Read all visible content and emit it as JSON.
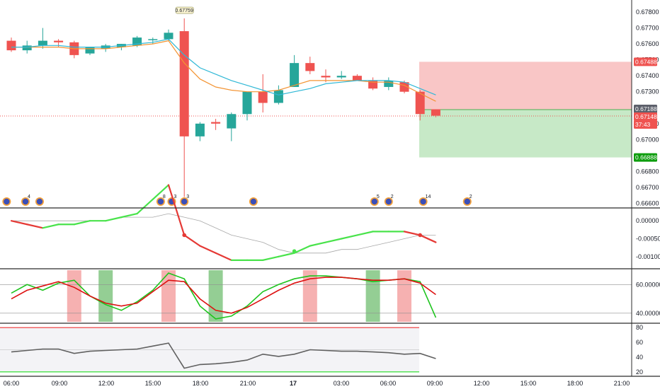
{
  "colors": {
    "up": "#26a69a",
    "down": "#ef5350",
    "ema_fast": "#2fb8d6",
    "ema_slow": "#f39433",
    "osc_up": "#49e34b",
    "osc_down": "#e53935",
    "osc_signal": "#a8a8a8",
    "stoch_k": "#1ec41e",
    "stoch_d": "#dd1111",
    "rsi": "#606060",
    "band_high": "#ee3333",
    "band_low": "#22dd22",
    "loss_zone": "#f9c6c6",
    "profit_zone": "#c7e9c7",
    "tag_price": "#5d606b",
    "tag_down": "#ef5350",
    "tag_stop": "#ef5350",
    "tag_target": "#0d9d0d",
    "buy_zone": "#f4a3a3",
    "sell_zone": "#8ecb8e"
  },
  "chart_data": [
    {
      "type": "candlestick",
      "x_ticks": [
        "06:00",
        "09:00",
        "12:00",
        "15:00",
        "18:00",
        "21:00",
        "17",
        "03:00",
        "06:00",
        "09:00",
        "12:00",
        "15:00",
        "18:00",
        "21:00"
      ],
      "y_ticks": [
        "0.67800",
        "0.67700",
        "0.67600",
        "0.67500",
        "0.67400",
        "0.67300",
        "0.67100",
        "0.67000",
        "0.66800",
        "0.66700",
        "0.66600"
      ],
      "ylim": [
        0.6658,
        0.6784
      ],
      "candles": [
        {
          "o": 0.6762,
          "h": 0.6764,
          "l": 0.6755,
          "c": 0.6756
        },
        {
          "o": 0.6756,
          "h": 0.6762,
          "l": 0.6754,
          "c": 0.6759
        },
        {
          "o": 0.6759,
          "h": 0.677,
          "l": 0.6757,
          "c": 0.6762
        },
        {
          "o": 0.6762,
          "h": 0.6763,
          "l": 0.6758,
          "c": 0.6761
        },
        {
          "o": 0.6761,
          "h": 0.6762,
          "l": 0.6751,
          "c": 0.6753
        },
        {
          "o": 0.6754,
          "h": 0.6758,
          "l": 0.6753,
          "c": 0.6758
        },
        {
          "o": 0.6757,
          "h": 0.676,
          "l": 0.6755,
          "c": 0.6759
        },
        {
          "o": 0.6758,
          "h": 0.676,
          "l": 0.6756,
          "c": 0.676
        },
        {
          "o": 0.6759,
          "h": 0.6765,
          "l": 0.6758,
          "c": 0.6764
        },
        {
          "o": 0.6763,
          "h": 0.6764,
          "l": 0.676,
          "c": 0.6763
        },
        {
          "o": 0.6763,
          "h": 0.6769,
          "l": 0.6762,
          "c": 0.6767
        },
        {
          "o": 0.6768,
          "h": 0.6776,
          "l": 0.6664,
          "c": 0.6702
        },
        {
          "o": 0.6702,
          "h": 0.6711,
          "l": 0.6699,
          "c": 0.671
        },
        {
          "o": 0.6711,
          "h": 0.6713,
          "l": 0.6706,
          "c": 0.671
        },
        {
          "o": 0.6707,
          "h": 0.6717,
          "l": 0.6699,
          "c": 0.6716
        },
        {
          "o": 0.6716,
          "h": 0.673,
          "l": 0.6712,
          "c": 0.673
        },
        {
          "o": 0.673,
          "h": 0.6741,
          "l": 0.6717,
          "c": 0.6723
        },
        {
          "o": 0.6723,
          "h": 0.6734,
          "l": 0.6722,
          "c": 0.6731
        },
        {
          "o": 0.6733,
          "h": 0.6753,
          "l": 0.6733,
          "c": 0.6748
        },
        {
          "o": 0.6748,
          "h": 0.6752,
          "l": 0.6741,
          "c": 0.6743
        },
        {
          "o": 0.674,
          "h": 0.6744,
          "l": 0.6736,
          "c": 0.6739
        },
        {
          "o": 0.6739,
          "h": 0.6743,
          "l": 0.6738,
          "c": 0.674
        },
        {
          "o": 0.674,
          "h": 0.6741,
          "l": 0.6737,
          "c": 0.6737
        },
        {
          "o": 0.6737,
          "h": 0.6739,
          "l": 0.6731,
          "c": 0.6732
        },
        {
          "o": 0.6733,
          "h": 0.6739,
          "l": 0.6731,
          "c": 0.6737
        },
        {
          "o": 0.6736,
          "h": 0.6737,
          "l": 0.6729,
          "c": 0.673
        },
        {
          "o": 0.673,
          "h": 0.6731,
          "l": 0.6712,
          "c": 0.6716
        },
        {
          "o": 0.6719,
          "h": 0.6719,
          "l": 0.6714,
          "c": 0.6715
        }
      ],
      "ema_fast": [
        0.6758,
        0.6758,
        0.6759,
        0.6759,
        0.6758,
        0.6758,
        0.6758,
        0.6759,
        0.676,
        0.6761,
        0.6763,
        0.6753,
        0.6745,
        0.6741,
        0.6737,
        0.6734,
        0.6731,
        0.6728,
        0.673,
        0.6732,
        0.6735,
        0.6736,
        0.6737,
        0.6737,
        0.6737,
        0.6736,
        0.6732,
        0.6728
      ],
      "ema_slow": [
        0.6758,
        0.6758,
        0.6758,
        0.6758,
        0.6757,
        0.6757,
        0.6757,
        0.6758,
        0.6759,
        0.676,
        0.6762,
        0.6748,
        0.6738,
        0.6733,
        0.6731,
        0.673,
        0.673,
        0.6731,
        0.6734,
        0.6737,
        0.6737,
        0.6737,
        0.6737,
        0.6736,
        0.6736,
        0.6734,
        0.6729,
        0.6724
      ],
      "price_tags": [
        {
          "label": "0.67488",
          "kind": "stop"
        },
        {
          "label": "0.67188",
          "kind": "price"
        },
        {
          "label": "0.67148",
          "kind": "down"
        },
        {
          "label": "37:43",
          "kind": "down"
        },
        {
          "label": "0.66888",
          "kind": "target"
        }
      ],
      "position": {
        "stop": 0.67488,
        "entry": 0.67188,
        "target": 0.66888
      },
      "high_label": "0.67759",
      "events": [
        {
          "bar": -0.3,
          "label": ""
        },
        {
          "bar": 0.9,
          "label": "4"
        },
        {
          "bar": 1.8,
          "label": ""
        },
        {
          "bar": 9.5,
          "label": "8"
        },
        {
          "bar": 10.2,
          "label": "3"
        },
        {
          "bar": 11.0,
          "label": "3"
        },
        {
          "bar": 15.4,
          "label": ""
        },
        {
          "bar": 23.1,
          "label": "5"
        },
        {
          "bar": 24.0,
          "label": "2"
        },
        {
          "bar": 26.2,
          "label": "14"
        },
        {
          "bar": 29.0,
          "label": "2"
        }
      ]
    },
    {
      "type": "line",
      "series_up": [
        0.0,
        -0.0001,
        -0.0002,
        -0.0001,
        -0.0001,
        0.0,
        0.0,
        0.0001,
        0.0002,
        0.0006,
        0.001,
        -0.0004,
        -0.0007,
        -0.0009,
        -0.0011,
        -0.0011,
        -0.0011,
        -0.001,
        -0.0009,
        -0.0007,
        -0.0006,
        -0.0005,
        -0.0004,
        -0.0003,
        -0.0003,
        -0.0003,
        -0.0004,
        -0.0006
      ],
      "series_signal": [
        0.0,
        0.0,
        0.0,
        0.0,
        0.0,
        0.0,
        0.0,
        0.0001,
        0.0001,
        0.0001,
        0.0002,
        0.0001,
        0.0,
        -0.0002,
        -0.0004,
        -0.0005,
        -0.0006,
        -0.0008,
        -0.0009,
        -0.0009,
        -0.0009,
        -0.0008,
        -0.0008,
        -0.0007,
        -0.0006,
        -0.0005,
        -0.0004,
        -0.0004
      ],
      "y_ticks": [
        "0.00000",
        "-0.00050",
        "-0.00100"
      ],
      "ylim": [
        -0.0013,
        0.0003
      ]
    },
    {
      "type": "line",
      "stoch_k": [
        54,
        60,
        56,
        61,
        63,
        52,
        46,
        42,
        48,
        56,
        68,
        64,
        45,
        36,
        38,
        45,
        55,
        60,
        64,
        66,
        66,
        65,
        64,
        62,
        63,
        64,
        62,
        37
      ],
      "stoch_d": [
        50,
        56,
        59,
        62,
        58,
        52,
        47,
        45,
        47,
        55,
        63,
        62,
        50,
        42,
        40,
        44,
        50,
        56,
        61,
        64,
        65,
        65,
        64,
        63,
        63,
        64,
        61,
        53
      ],
      "zones_buy": [
        4,
        10,
        19,
        25
      ],
      "zones_sell": [
        6,
        13,
        23
      ],
      "y_ticks": [
        "60.00000",
        "40.00000"
      ],
      "ylim": [
        34,
        70
      ]
    },
    {
      "type": "line",
      "rsi": [
        47,
        49,
        51,
        51,
        45,
        48,
        49,
        50,
        51,
        55,
        59,
        25,
        30,
        31,
        33,
        36,
        44,
        41,
        44,
        50,
        49,
        48,
        48,
        47,
        46,
        44,
        45,
        38
      ],
      "upper": 80,
      "lower": 20,
      "mid": 50,
      "y_ticks": [
        "80",
        "60",
        "40",
        "20"
      ],
      "ylim": [
        16,
        84
      ]
    }
  ]
}
